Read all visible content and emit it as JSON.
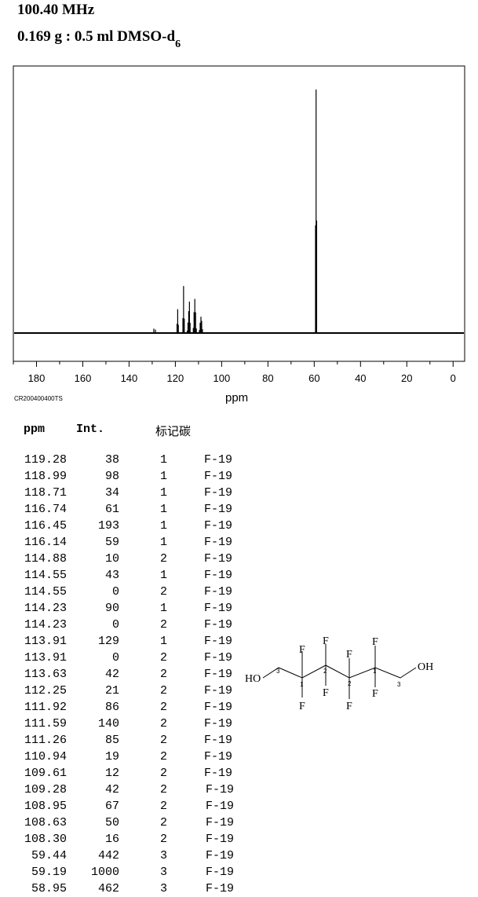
{
  "header": {
    "frequency": "100.40 MHz",
    "sample": "0.169 g : 0.5 ml DMSO-d",
    "sample_sub": "6"
  },
  "spectrum_code": "CR200400400TS",
  "table": {
    "col_ppm": "ppm",
    "col_int": "Int.",
    "col_label": "标记碳",
    "rows": [
      {
        "ppm": "119.28",
        "int": "38",
        "label": "1",
        "assign": "F-19"
      },
      {
        "ppm": "118.99",
        "int": "98",
        "label": "1",
        "assign": "F-19"
      },
      {
        "ppm": "118.71",
        "int": "34",
        "label": "1",
        "assign": "F-19"
      },
      {
        "ppm": "116.74",
        "int": "61",
        "label": "1",
        "assign": "F-19"
      },
      {
        "ppm": "116.45",
        "int": "193",
        "label": "1",
        "assign": "F-19"
      },
      {
        "ppm": "116.14",
        "int": "59",
        "label": "1",
        "assign": "F-19"
      },
      {
        "ppm": "114.88",
        "int": "10",
        "label": "2",
        "assign": "F-19"
      },
      {
        "ppm": "114.55",
        "int": "43",
        "label": "1",
        "assign": "F-19"
      },
      {
        "ppm": "114.55",
        "int": "0",
        "label": "2",
        "assign": "F-19"
      },
      {
        "ppm": "114.23",
        "int": "90",
        "label": "1",
        "assign": "F-19"
      },
      {
        "ppm": "114.23",
        "int": "0",
        "label": "2",
        "assign": "F-19"
      },
      {
        "ppm": "113.91",
        "int": "129",
        "label": "1",
        "assign": "F-19"
      },
      {
        "ppm": "113.91",
        "int": "0",
        "label": "2",
        "assign": "F-19"
      },
      {
        "ppm": "113.63",
        "int": "42",
        "label": "2",
        "assign": "F-19"
      },
      {
        "ppm": "112.25",
        "int": "21",
        "label": "2",
        "assign": "F-19"
      },
      {
        "ppm": "111.92",
        "int": "86",
        "label": "2",
        "assign": "F-19"
      },
      {
        "ppm": "111.59",
        "int": "140",
        "label": "2",
        "assign": "F-19"
      },
      {
        "ppm": "111.26",
        "int": "85",
        "label": "2",
        "assign": "F-19"
      },
      {
        "ppm": "110.94",
        "int": "19",
        "label": "2",
        "assign": "F-19"
      },
      {
        "ppm": "109.61",
        "int": "12",
        "label": "2",
        "assign": "F-19"
      },
      {
        "ppm": "109.28",
        "int": "42",
        "label": "2",
        "assign": "F-19"
      },
      {
        "ppm": "108.95",
        "int": "67",
        "label": "2",
        "assign": "F-19"
      },
      {
        "ppm": "108.63",
        "int": "50",
        "label": "2",
        "assign": "F-19"
      },
      {
        "ppm": "108.30",
        "int": "16",
        "label": "2",
        "assign": "F-19"
      },
      {
        "ppm": "59.44",
        "int": "442",
        "label": "3",
        "assign": "F-19"
      },
      {
        "ppm": "59.19",
        "int": "1000",
        "label": "3",
        "assign": "F-19"
      },
      {
        "ppm": "58.95",
        "int": "462",
        "label": "3",
        "assign": "F-19"
      }
    ]
  },
  "molecule": {
    "ho_left": "HO",
    "oh_right": "OH",
    "f": "F",
    "carbon_labels": [
      "3",
      "1",
      "2",
      "2",
      "1",
      "3"
    ]
  },
  "chart_data": {
    "type": "line",
    "title": "",
    "xlabel": "ppm",
    "ylabel": "",
    "xlim": [
      190,
      -5
    ],
    "xticks": [
      180,
      160,
      140,
      120,
      100,
      80,
      60,
      40,
      20,
      0
    ],
    "ylim": [
      0,
      1000
    ],
    "grid": false,
    "peaks": [
      {
        "ppm": 129.3,
        "int": 18
      },
      {
        "ppm": 128.6,
        "int": 14
      },
      {
        "ppm": 119.28,
        "int": 38
      },
      {
        "ppm": 118.99,
        "int": 98
      },
      {
        "ppm": 118.71,
        "int": 34
      },
      {
        "ppm": 116.74,
        "int": 61
      },
      {
        "ppm": 116.45,
        "int": 193
      },
      {
        "ppm": 116.14,
        "int": 59
      },
      {
        "ppm": 114.88,
        "int": 10
      },
      {
        "ppm": 114.55,
        "int": 43
      },
      {
        "ppm": 114.23,
        "int": 90
      },
      {
        "ppm": 113.91,
        "int": 129
      },
      {
        "ppm": 113.63,
        "int": 42
      },
      {
        "ppm": 112.25,
        "int": 21
      },
      {
        "ppm": 111.92,
        "int": 86
      },
      {
        "ppm": 111.59,
        "int": 140
      },
      {
        "ppm": 111.26,
        "int": 85
      },
      {
        "ppm": 110.94,
        "int": 19
      },
      {
        "ppm": 109.61,
        "int": 12
      },
      {
        "ppm": 109.28,
        "int": 42
      },
      {
        "ppm": 108.95,
        "int": 67
      },
      {
        "ppm": 108.63,
        "int": 50
      },
      {
        "ppm": 108.3,
        "int": 16
      },
      {
        "ppm": 59.44,
        "int": 442
      },
      {
        "ppm": 59.19,
        "int": 1000
      },
      {
        "ppm": 58.95,
        "int": 462
      }
    ]
  },
  "colors": {
    "line": "#000000",
    "background": "#ffffff"
  }
}
